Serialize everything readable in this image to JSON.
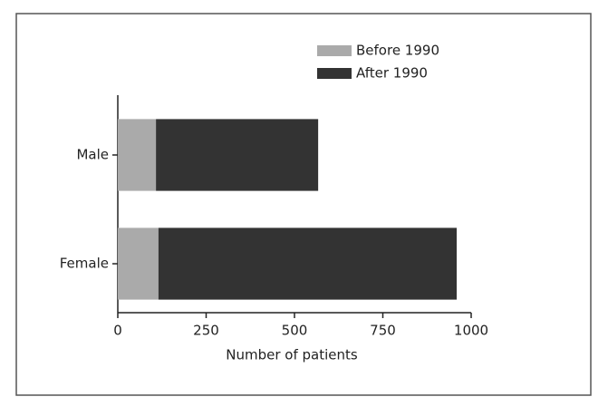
{
  "chart_data": {
    "type": "stacked-barh",
    "categories": [
      "Male",
      "Female"
    ],
    "series": [
      {
        "name": "Before 1990",
        "color": "#aaaaaa",
        "values": [
          108,
          115
        ]
      },
      {
        "name": "After 1990",
        "color": "#333333",
        "values": [
          459,
          844
        ]
      }
    ],
    "xlabel": "Number of patients",
    "xlim": [
      0,
      1000
    ],
    "xticks": [
      0,
      250,
      500,
      750,
      1000
    ]
  }
}
